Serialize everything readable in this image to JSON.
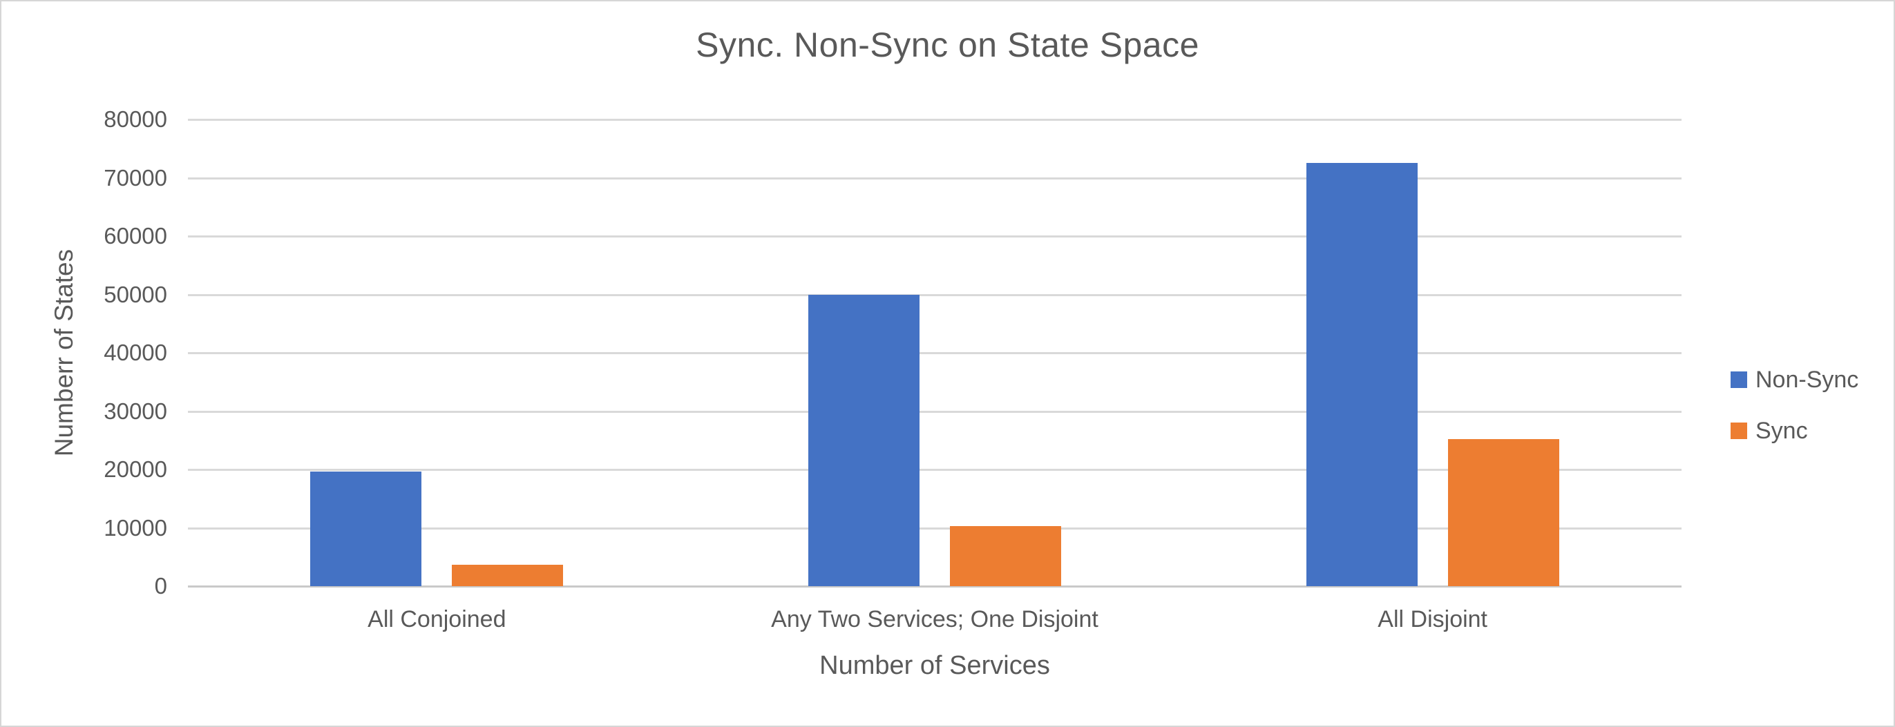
{
  "chart_data": {
    "type": "bar",
    "title": "Sync. Non-Sync on State Space",
    "xlabel": "Number of Services",
    "ylabel": "Numberr of States",
    "categories": [
      "All Conjoined",
      "Any Two Services; One Disjoint",
      "All Disjoint"
    ],
    "series": [
      {
        "name": "Non-Sync",
        "color": "#4472C4",
        "values": [
          19600,
          50000,
          72600
        ]
      },
      {
        "name": "Sync",
        "color": "#ED7D31",
        "values": [
          3700,
          10300,
          25200
        ]
      }
    ],
    "ylim": [
      0,
      80000
    ],
    "ytick_step": 10000,
    "ytick_labels": [
      "0",
      "10000",
      "20000",
      "30000",
      "40000",
      "50000",
      "60000",
      "70000",
      "80000"
    ],
    "grid": true,
    "gridline_color": "#d9d9d9",
    "axis_line_color": "#c9c9c9",
    "text_color": "#595959",
    "legend_position": "right"
  }
}
